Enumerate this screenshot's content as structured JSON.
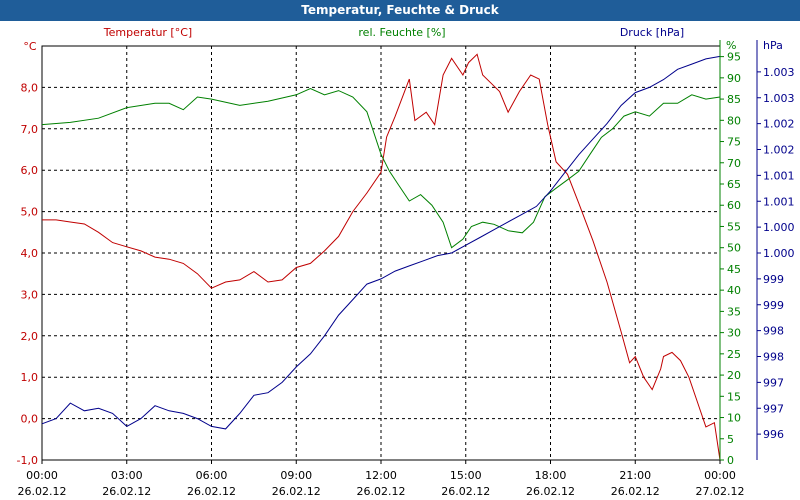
{
  "chart_data": {
    "type": "line",
    "title": "Temperatur, Feuchte & Druck",
    "x_labels": [
      {
        "time": "00:00",
        "date": "26.02.12"
      },
      {
        "time": "03:00",
        "date": "26.02.12"
      },
      {
        "time": "06:00",
        "date": "26.02.12"
      },
      {
        "time": "09:00",
        "date": "26.02.12"
      },
      {
        "time": "12:00",
        "date": "26.02.12"
      },
      {
        "time": "15:00",
        "date": "26.02.12"
      },
      {
        "time": "18:00",
        "date": "26.02.12"
      },
      {
        "time": "21:00",
        "date": "26.02.12"
      },
      {
        "time": "00:00",
        "date": "27.02.12"
      }
    ],
    "x_range_hours": [
      0,
      24
    ],
    "grid": true,
    "axes": {
      "temperature": {
        "unit_label": "°C",
        "legend": "Temperatur [°C]",
        "color": "#c00000",
        "ylim": [
          -1.0,
          9.0
        ],
        "ticks": [
          "-1,0",
          "0,0",
          "1,0",
          "2,0",
          "3,0",
          "4,0",
          "5,0",
          "6,0",
          "7,0",
          "8,0"
        ]
      },
      "humidity": {
        "unit_label": "%",
        "legend": "rel. Feuchte [%]",
        "color": "#008000",
        "ylim": [
          0,
          97.5
        ],
        "ticks": [
          "0",
          "5",
          "10",
          "15",
          "20",
          "25",
          "30",
          "35",
          "40",
          "45",
          "50",
          "55",
          "60",
          "65",
          "70",
          "75",
          "80",
          "85",
          "90",
          "95"
        ]
      },
      "pressure": {
        "unit_label": "hPa",
        "legend": "Druck [hPa]",
        "color": "#00008b",
        "ylim": [
          995.5,
          1003.5
        ],
        "ticks": [
          "996",
          "997",
          "997",
          "998",
          "998",
          "999",
          "999",
          "1.000",
          "1.000",
          "1.001",
          "1.001",
          "1.002",
          "1.002",
          "1.003",
          "1.003"
        ]
      }
    },
    "series": [
      {
        "name": "Temperatur [°C]",
        "axis": "temperature",
        "color": "#c00000",
        "points": [
          [
            0,
            4.8
          ],
          [
            0.5,
            4.8
          ],
          [
            1,
            4.75
          ],
          [
            1.5,
            4.7
          ],
          [
            2,
            4.5
          ],
          [
            2.5,
            4.25
          ],
          [
            3,
            4.15
          ],
          [
            3.5,
            4.05
          ],
          [
            4,
            3.9
          ],
          [
            4.5,
            3.85
          ],
          [
            5,
            3.75
          ],
          [
            5.5,
            3.5
          ],
          [
            6,
            3.15
          ],
          [
            6.5,
            3.3
          ],
          [
            7,
            3.35
          ],
          [
            7.5,
            3.55
          ],
          [
            8,
            3.3
          ],
          [
            8.5,
            3.35
          ],
          [
            9,
            3.65
          ],
          [
            9.5,
            3.75
          ],
          [
            10,
            4.05
          ],
          [
            10.5,
            4.4
          ],
          [
            11,
            5.0
          ],
          [
            11.5,
            5.45
          ],
          [
            12,
            5.95
          ],
          [
            12.2,
            6.8
          ],
          [
            12.5,
            7.3
          ],
          [
            13,
            8.2
          ],
          [
            13.2,
            7.2
          ],
          [
            13.6,
            7.4
          ],
          [
            13.9,
            7.1
          ],
          [
            14.2,
            8.3
          ],
          [
            14.5,
            8.7
          ],
          [
            14.9,
            8.3
          ],
          [
            15.1,
            8.6
          ],
          [
            15.4,
            8.8
          ],
          [
            15.6,
            8.3
          ],
          [
            15.9,
            8.1
          ],
          [
            16.2,
            7.9
          ],
          [
            16.5,
            7.4
          ],
          [
            16.9,
            7.9
          ],
          [
            17.3,
            8.3
          ],
          [
            17.6,
            8.2
          ],
          [
            17.9,
            7.1
          ],
          [
            18.2,
            6.2
          ],
          [
            18.6,
            5.9
          ],
          [
            19,
            5.2
          ],
          [
            19.5,
            4.3
          ],
          [
            20,
            3.3
          ],
          [
            20.5,
            2.1
          ],
          [
            20.8,
            1.35
          ],
          [
            21,
            1.5
          ],
          [
            21.3,
            1.0
          ],
          [
            21.6,
            0.7
          ],
          [
            21.9,
            1.2
          ],
          [
            22,
            1.5
          ],
          [
            22.3,
            1.6
          ],
          [
            22.6,
            1.4
          ],
          [
            22.9,
            1.0
          ],
          [
            23.2,
            0.4
          ],
          [
            23.5,
            -0.2
          ],
          [
            23.8,
            -0.1
          ],
          [
            24,
            -1.0
          ]
        ]
      },
      {
        "name": "rel. Feuchte [%]",
        "axis": "humidity",
        "color": "#008000",
        "points": [
          [
            0,
            79
          ],
          [
            1,
            79.5
          ],
          [
            2,
            80.5
          ],
          [
            3,
            83
          ],
          [
            4,
            84
          ],
          [
            4.5,
            84
          ],
          [
            5,
            82.5
          ],
          [
            5.5,
            85.5
          ],
          [
            6,
            85
          ],
          [
            7,
            83.5
          ],
          [
            8,
            84.5
          ],
          [
            9,
            86
          ],
          [
            9.5,
            87.5
          ],
          [
            10,
            86
          ],
          [
            10.5,
            87
          ],
          [
            11,
            85.5
          ],
          [
            11.5,
            82
          ],
          [
            12,
            72
          ],
          [
            12.3,
            68
          ],
          [
            12.6,
            65
          ],
          [
            13,
            61
          ],
          [
            13.4,
            62.5
          ],
          [
            13.8,
            60
          ],
          [
            14.2,
            56
          ],
          [
            14.5,
            50
          ],
          [
            14.9,
            52
          ],
          [
            15.2,
            55
          ],
          [
            15.6,
            56
          ],
          [
            16,
            55.5
          ],
          [
            16.5,
            54
          ],
          [
            17,
            53.5
          ],
          [
            17.4,
            56
          ],
          [
            17.8,
            62
          ],
          [
            18.2,
            64
          ],
          [
            18.6,
            66
          ],
          [
            19,
            68
          ],
          [
            19.4,
            72
          ],
          [
            19.8,
            76
          ],
          [
            20.2,
            78
          ],
          [
            20.6,
            81
          ],
          [
            21,
            82
          ],
          [
            21.5,
            81
          ],
          [
            22,
            84
          ],
          [
            22.5,
            84
          ],
          [
            23,
            86
          ],
          [
            23.5,
            85
          ],
          [
            24,
            85.5
          ]
        ]
      },
      {
        "name": "Druck [hPa]",
        "axis": "pressure",
        "color": "#00008b",
        "points": [
          [
            0,
            996.2
          ],
          [
            0.5,
            996.3
          ],
          [
            1,
            996.6
          ],
          [
            1.5,
            996.45
          ],
          [
            2,
            996.5
          ],
          [
            2.5,
            996.4
          ],
          [
            3,
            996.15
          ],
          [
            3.5,
            996.3
          ],
          [
            4,
            996.55
          ],
          [
            4.5,
            996.45
          ],
          [
            5,
            996.4
          ],
          [
            5.5,
            996.3
          ],
          [
            6,
            996.15
          ],
          [
            6.5,
            996.1
          ],
          [
            7,
            996.4
          ],
          [
            7.5,
            996.75
          ],
          [
            8,
            996.8
          ],
          [
            8.5,
            997.0
          ],
          [
            9,
            997.3
          ],
          [
            9.5,
            997.55
          ],
          [
            10,
            997.9
          ],
          [
            10.5,
            998.3
          ],
          [
            11,
            998.6
          ],
          [
            11.5,
            998.9
          ],
          [
            12,
            999.0
          ],
          [
            12.5,
            999.15
          ],
          [
            13,
            999.25
          ],
          [
            13.5,
            999.35
          ],
          [
            14,
            999.45
          ],
          [
            14.5,
            999.5
          ],
          [
            15,
            999.65
          ],
          [
            15.5,
            999.8
          ],
          [
            16,
            999.95
          ],
          [
            16.5,
            1000.1
          ],
          [
            17,
            1000.25
          ],
          [
            17.5,
            1000.4
          ],
          [
            18,
            1000.7
          ],
          [
            18.5,
            1001.05
          ],
          [
            19,
            1001.4
          ],
          [
            19.5,
            1001.7
          ],
          [
            20,
            1002.0
          ],
          [
            20.5,
            1002.35
          ],
          [
            21,
            1002.6
          ],
          [
            21.5,
            1002.7
          ],
          [
            22,
            1002.85
          ],
          [
            22.5,
            1003.05
          ],
          [
            23,
            1003.15
          ],
          [
            23.5,
            1003.25
          ],
          [
            24,
            1003.3
          ]
        ]
      }
    ]
  }
}
